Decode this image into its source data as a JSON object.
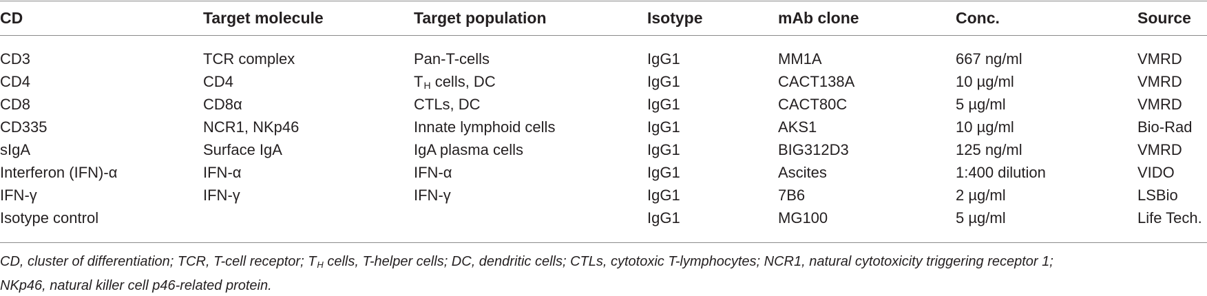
{
  "table": {
    "headers": [
      "CD",
      "Target molecule",
      "Target population",
      "Isotype",
      "mAb clone",
      "Conc.",
      "Source"
    ],
    "rows": [
      [
        "CD3",
        "TCR complex",
        "Pan-T-cells",
        "IgG1",
        "MM1A",
        "667 ng/ml",
        "VMRD"
      ],
      [
        "CD4",
        "CD4",
        "T_H cells, DC",
        "IgG1",
        "CACT138A",
        "10 µg/ml",
        "VMRD"
      ],
      [
        "CD8",
        "CD8α",
        "CTLs, DC",
        "IgG1",
        "CACT80C",
        "5 µg/ml",
        "VMRD"
      ],
      [
        "CD335",
        "NCR1, NKp46",
        "Innate lymphoid cells",
        "IgG1",
        "AKS1",
        "10 µg/ml",
        "Bio-Rad"
      ],
      [
        "sIgA",
        "Surface IgA",
        "IgA plasma cells",
        "IgG1",
        "BIG312D3",
        "125 ng/ml",
        "VMRD"
      ],
      [
        "Interferon (IFN)-α",
        "IFN-α",
        "IFN-α",
        "IgG1",
        "Ascites",
        "1:400 dilution",
        "VIDO"
      ],
      [
        "IFN-γ",
        "IFN-γ",
        "IFN-γ",
        "IgG1",
        "7B6",
        "2 µg/ml",
        "LSBio"
      ],
      [
        "Isotype control",
        "",
        "",
        "IgG1",
        "MG100",
        "5 µg/ml",
        "Life Tech."
      ]
    ],
    "th_cell": {
      "main": "T",
      "sub": "H",
      "rest": " cells, DC"
    }
  },
  "footnote": {
    "part1": "CD, cluster of differentiation; TCR, T-cell receptor; T",
    "sub": "H",
    "part2": " cells, T-helper cells; DC, dendritic cells; CTLs, cytotoxic T-lymphocytes; NCR1, natural cytotoxicity triggering receptor 1;",
    "line2": "NKp46, natural killer cell p46-related protein."
  }
}
